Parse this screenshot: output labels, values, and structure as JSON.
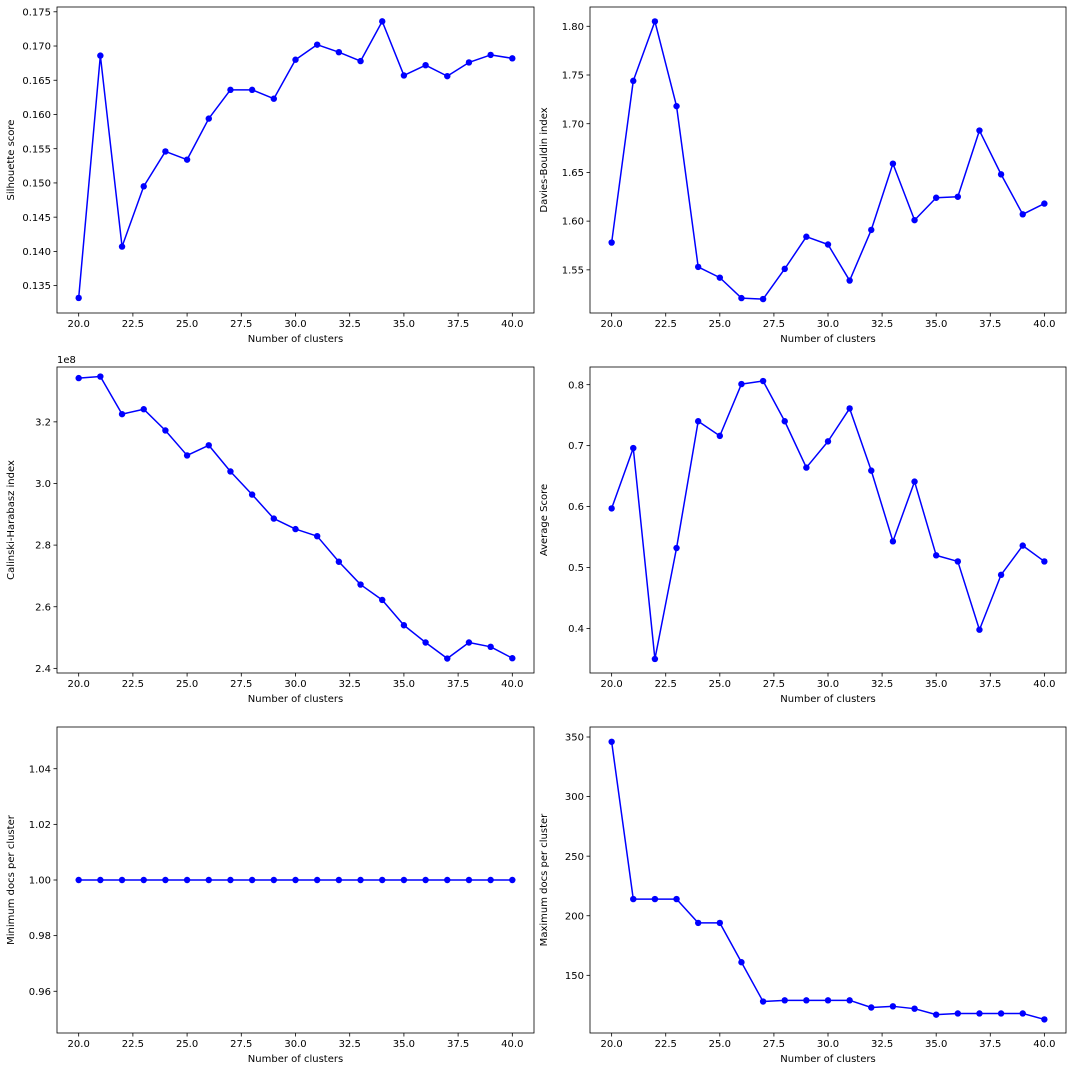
{
  "chart_data": [
    {
      "type": "line",
      "xlabel": "Number of clusters",
      "ylabel": "Silhouette score",
      "xlim": [
        19.0,
        41.0
      ],
      "ylim": [
        0.131,
        0.1757
      ],
      "xticks": [
        20.0,
        22.5,
        25.0,
        27.5,
        30.0,
        32.5,
        35.0,
        37.5,
        40.0
      ],
      "xtick_labels": [
        "20.0",
        "22.5",
        "25.0",
        "27.5",
        "30.0",
        "32.5",
        "35.0",
        "37.5",
        "40.0"
      ],
      "yticks": [
        0.135,
        0.14,
        0.145,
        0.15,
        0.155,
        0.16,
        0.165,
        0.17,
        0.175
      ],
      "ytick_labels": [
        "0.135",
        "0.140",
        "0.145",
        "0.150",
        "0.155",
        "0.160",
        "0.165",
        "0.170",
        "0.175"
      ],
      "offset_text": "",
      "grid": false,
      "color": "#0000ff",
      "marker": "circle",
      "series": [
        {
          "x": [
            20,
            21,
            22,
            23,
            24,
            25,
            26,
            27,
            28,
            29,
            30,
            31,
            32,
            33,
            34,
            35,
            36,
            37,
            38,
            39,
            40
          ],
          "values": [
            0.1332,
            0.1686,
            0.1407,
            0.1495,
            0.1546,
            0.1534,
            0.1594,
            0.1636,
            0.1636,
            0.1623,
            0.168,
            0.1702,
            0.1691,
            0.1678,
            0.1736,
            0.1657,
            0.1672,
            0.1656,
            0.1676,
            0.1687,
            0.1682
          ]
        }
      ]
    },
    {
      "type": "line",
      "xlabel": "Number of clusters",
      "ylabel": "Davies-Bouldin index",
      "xlim": [
        19.0,
        41.0
      ],
      "ylim": [
        1.5057,
        1.8198
      ],
      "xticks": [
        20.0,
        22.5,
        25.0,
        27.5,
        30.0,
        32.5,
        35.0,
        37.5,
        40.0
      ],
      "xtick_labels": [
        "20.0",
        "22.5",
        "25.0",
        "27.5",
        "30.0",
        "32.5",
        "35.0",
        "37.5",
        "40.0"
      ],
      "yticks": [
        1.55,
        1.6,
        1.65,
        1.7,
        1.75,
        1.8
      ],
      "ytick_labels": [
        "1.55",
        "1.60",
        "1.65",
        "1.70",
        "1.75",
        "1.80"
      ],
      "offset_text": "",
      "grid": false,
      "color": "#0000ff",
      "marker": "circle",
      "series": [
        {
          "x": [
            20,
            21,
            22,
            23,
            24,
            25,
            26,
            27,
            28,
            29,
            30,
            31,
            32,
            33,
            34,
            35,
            36,
            37,
            38,
            39,
            40
          ],
          "values": [
            1.578,
            1.744,
            1.805,
            1.718,
            1.553,
            1.542,
            1.521,
            1.52,
            1.551,
            1.584,
            1.576,
            1.539,
            1.591,
            1.659,
            1.601,
            1.624,
            1.625,
            1.693,
            1.648,
            1.607,
            1.618
          ]
        }
      ]
    },
    {
      "type": "line",
      "xlabel": "Number of clusters",
      "ylabel": "Calinski-Harabasz index",
      "xlim": [
        19.0,
        41.0
      ],
      "ylim": [
        2.385,
        3.378
      ],
      "xticks": [
        20.0,
        22.5,
        25.0,
        27.5,
        30.0,
        32.5,
        35.0,
        37.5,
        40.0
      ],
      "xtick_labels": [
        "20.0",
        "22.5",
        "25.0",
        "27.5",
        "30.0",
        "32.5",
        "35.0",
        "37.5",
        "40.0"
      ],
      "yticks": [
        2.4,
        2.6,
        2.8,
        3.0,
        3.2
      ],
      "ytick_labels": [
        "2.4",
        "2.6",
        "2.8",
        "3.0",
        "3.2"
      ],
      "offset_text": "1e8",
      "grid": false,
      "color": "#0000ff",
      "marker": "circle",
      "series": [
        {
          "x": [
            20,
            21,
            22,
            23,
            24,
            25,
            26,
            27,
            28,
            29,
            30,
            31,
            32,
            33,
            34,
            35,
            36,
            37,
            38,
            39,
            40
          ],
          "values": [
            3.342,
            3.347,
            3.225,
            3.241,
            3.172,
            3.091,
            3.124,
            3.039,
            2.964,
            2.886,
            2.852,
            2.829,
            2.746,
            2.672,
            2.622,
            2.54,
            2.484,
            2.432,
            2.484,
            2.47,
            2.433
          ]
        }
      ]
    },
    {
      "type": "line",
      "xlabel": "Number of clusters",
      "ylabel": "Average Score",
      "xlim": [
        19.0,
        41.0
      ],
      "ylim": [
        0.327,
        0.829
      ],
      "xticks": [
        20.0,
        22.5,
        25.0,
        27.5,
        30.0,
        32.5,
        35.0,
        37.5,
        40.0
      ],
      "xtick_labels": [
        "20.0",
        "22.5",
        "25.0",
        "27.5",
        "30.0",
        "32.5",
        "35.0",
        "37.5",
        "40.0"
      ],
      "yticks": [
        0.4,
        0.5,
        0.6,
        0.7,
        0.8
      ],
      "ytick_labels": [
        "0.4",
        "0.5",
        "0.6",
        "0.7",
        "0.8"
      ],
      "offset_text": "",
      "grid": false,
      "color": "#0000ff",
      "marker": "circle",
      "series": [
        {
          "x": [
            20,
            21,
            22,
            23,
            24,
            25,
            26,
            27,
            28,
            29,
            30,
            31,
            32,
            33,
            34,
            35,
            36,
            37,
            38,
            39,
            40
          ],
          "values": [
            0.597,
            0.696,
            0.35,
            0.532,
            0.74,
            0.716,
            0.801,
            0.806,
            0.74,
            0.664,
            0.707,
            0.761,
            0.659,
            0.543,
            0.641,
            0.52,
            0.51,
            0.398,
            0.488,
            0.536,
            0.51
          ]
        }
      ]
    },
    {
      "type": "line",
      "xlabel": "Number of clusters",
      "ylabel": "Minimum docs per cluster",
      "xlim": [
        19.0,
        41.0
      ],
      "ylim": [
        0.945,
        1.055
      ],
      "xticks": [
        20.0,
        22.5,
        25.0,
        27.5,
        30.0,
        32.5,
        35.0,
        37.5,
        40.0
      ],
      "xtick_labels": [
        "20.0",
        "22.5",
        "25.0",
        "27.5",
        "30.0",
        "32.5",
        "35.0",
        "37.5",
        "40.0"
      ],
      "yticks": [
        0.96,
        0.98,
        1.0,
        1.02,
        1.04
      ],
      "ytick_labels": [
        "0.96",
        "0.98",
        "1.00",
        "1.02",
        "1.04"
      ],
      "offset_text": "",
      "grid": false,
      "color": "#0000ff",
      "marker": "circle",
      "series": [
        {
          "x": [
            20,
            21,
            22,
            23,
            24,
            25,
            26,
            27,
            28,
            29,
            30,
            31,
            32,
            33,
            34,
            35,
            36,
            37,
            38,
            39,
            40
          ],
          "values": [
            1,
            1,
            1,
            1,
            1,
            1,
            1,
            1,
            1,
            1,
            1,
            1,
            1,
            1,
            1,
            1,
            1,
            1,
            1,
            1,
            1
          ]
        }
      ]
    },
    {
      "type": "line",
      "xlabel": "Number of clusters",
      "ylabel": "Maximum docs per cluster",
      "xlim": [
        19.0,
        41.0
      ],
      "ylim": [
        101.6,
        358.4
      ],
      "xticks": [
        20.0,
        22.5,
        25.0,
        27.5,
        30.0,
        32.5,
        35.0,
        37.5,
        40.0
      ],
      "xtick_labels": [
        "20.0",
        "22.5",
        "25.0",
        "27.5",
        "30.0",
        "32.5",
        "35.0",
        "37.5",
        "40.0"
      ],
      "yticks": [
        150,
        200,
        250,
        300,
        350
      ],
      "ytick_labels": [
        "150",
        "200",
        "250",
        "300",
        "350"
      ],
      "offset_text": "",
      "grid": false,
      "color": "#0000ff",
      "marker": "circle",
      "series": [
        {
          "x": [
            20,
            21,
            22,
            23,
            24,
            25,
            26,
            27,
            28,
            29,
            30,
            31,
            32,
            33,
            34,
            35,
            36,
            37,
            38,
            39,
            40
          ],
          "values": [
            346,
            214,
            214,
            214,
            194,
            194,
            161,
            128,
            129,
            129,
            129,
            129,
            123,
            124,
            122,
            117,
            118,
            118,
            118,
            118,
            113
          ]
        }
      ]
    }
  ]
}
